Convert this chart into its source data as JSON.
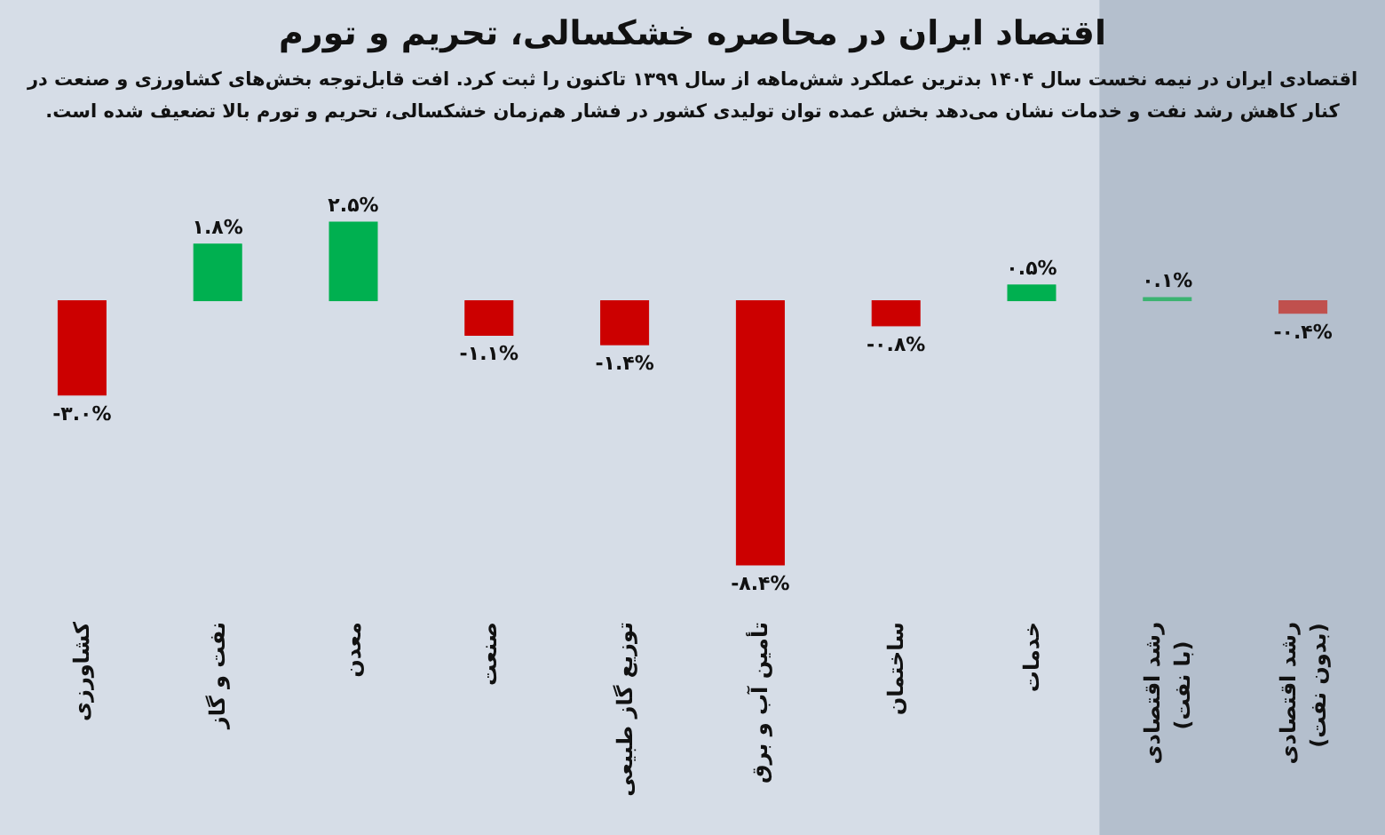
{
  "chart_data": {
    "type": "bar",
    "title": "اقتصاد ایران در محاصره خشکسالی، تحریم و تورم",
    "subtitle": "اقتصادی ایران در نیمه نخست سال ۱۴۰۴ بدترین عملکرد شش‌ماهه از سال ۱۳۹۹ تاکنون را ثبت کرد. افت قابل‌توجه بخش‌های کشاورزی و صنعت در کنار کاهش رشد نفت و خدمات نشان می‌دهد بخش عمده توان تولیدی کشور در فشار هم‌زمان خشکسالی، تحریم و تورم بالا تضعیف شده است.",
    "categories": [
      "کشاورزی",
      "نفت و گاز",
      "معدن",
      "صنعت",
      "توزیع گاز طبیعی",
      "تأمین آب و برق",
      "ساختمان",
      "خدمات",
      "رشد اقتصادی (با نفت)",
      "رشد اقتصادی (بدون نفت)"
    ],
    "values": [
      -3.0,
      1.8,
      2.5,
      -1.1,
      -1.4,
      -8.4,
      -0.8,
      0.5,
      0.1,
      -0.4
    ],
    "colors": [
      "#cc0000",
      "#00b050",
      "#00b050",
      "#cc0000",
      "#cc0000",
      "#cc0000",
      "#cc0000",
      "#00b050",
      "#3cb371",
      "#c0504d"
    ],
    "value_labels": [
      "-۳.۰%",
      "۱.۸%",
      "۲.۵%",
      "-۱.۱%",
      "-۱.۴%",
      "-۸.۴%",
      "-۰.۸%",
      "۰.۵%",
      "۰.۱%",
      "-۰.۴%"
    ],
    "bands": [
      {
        "axis": "x",
        "from": "رشد اقتصادی (با نفت)",
        "to": "رشد اقتصادی (بدون نفت)",
        "color": "#b4bfcd"
      }
    ]
  }
}
